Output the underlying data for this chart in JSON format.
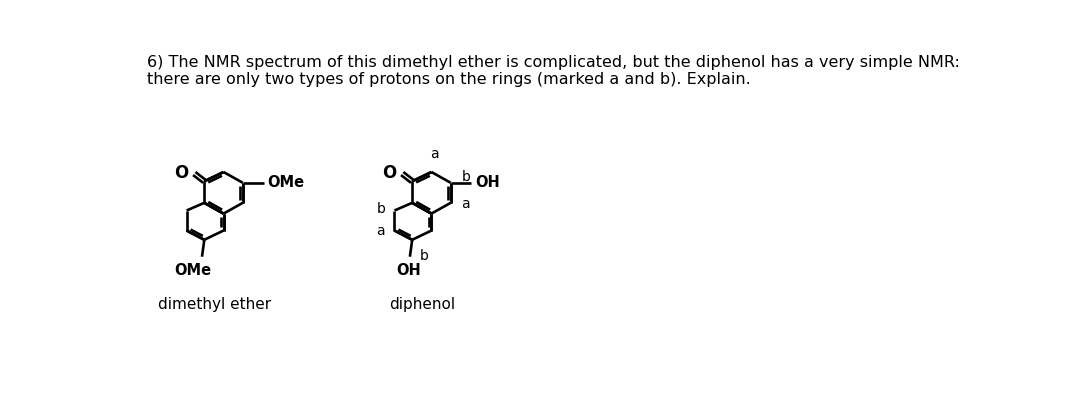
{
  "title_line1": "6) The NMR spectrum of this dimethyl ether is complicated, but the diphenol has a very simple NMR:",
  "title_line2": "there are only two types of protons on the rings (marked a and b). Explain.",
  "label_dimethyl_ether": "dimethyl ether",
  "label_diphenol": "diphenol",
  "bg_color": "#ffffff",
  "line_color": "#000000",
  "text_color": "#000000",
  "lw": 1.8
}
